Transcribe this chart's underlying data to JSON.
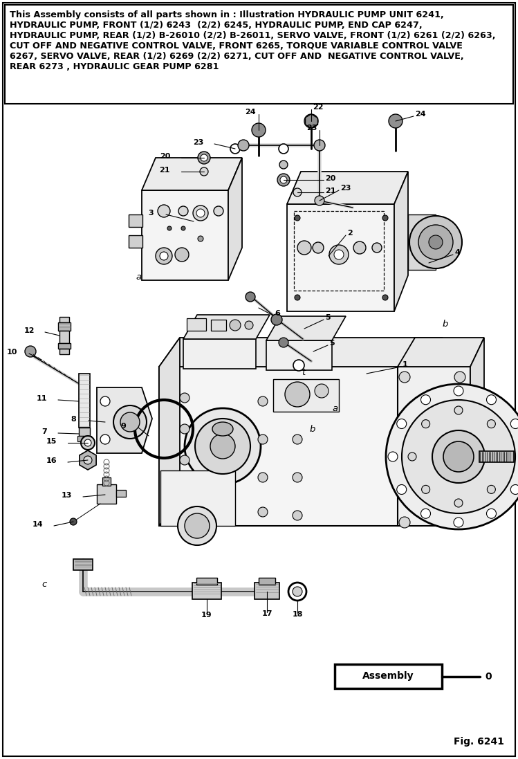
{
  "header_text": "This Assembly consists of all parts shown in : Illustration HYDRAULIC PUMP UNIT 6241,\nHYDRAULIC PUMP, FRONT (1/2) 6243  (2/2) 6245, HYDRAULIC PUMP, END CAP 6247,\nHYDRAULIC PUMP, REAR (1/2) B-26010 (2/2) B-26011, SERVO VALVE, FRONT (1/2) 6261 (2/2) 6263,\nCUT OFF AND NEGATIVE CONTROL VALVE, FRONT 6265, TORQUE VARIABLE CONTROL VALVE\n6267, SERVO VALVE, REAR (1/2) 6269 (2/2) 6271, CUT OFF AND  NEGATIVE CONTROL VALVE,\nREAR 6273 , HYDRAULIC GEAR PUMP 6281",
  "fig_label": "Fig. 6241",
  "assembly_label": "Assembly",
  "assembly_number": "0",
  "bg_color": "#ffffff",
  "figsize": [
    7.49,
    10.97
  ],
  "dpi": 100,
  "header_fontsize": 9.2,
  "label_fontsize": 8.0,
  "italic_fontsize": 9.5,
  "assembly_fontsize": 10.0,
  "fig_fontsize": 10.0
}
